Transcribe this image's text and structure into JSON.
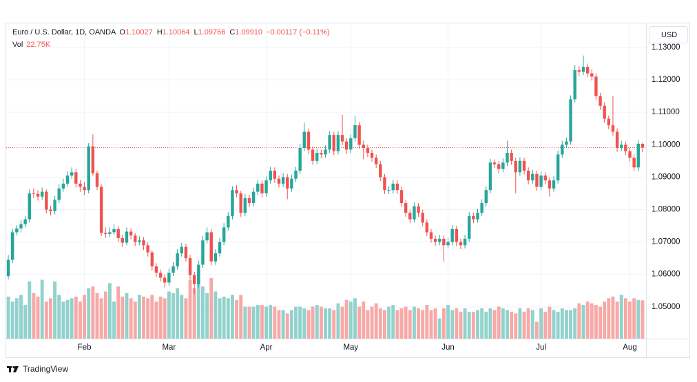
{
  "chart_data": {
    "type": "candlestick",
    "legend": {
      "symbol": "Euro / U.S. Dollar, 1D, OANDA",
      "ohlc": [
        {
          "key": "O",
          "value": "1.10027"
        },
        {
          "key": "H",
          "value": "1.10064"
        },
        {
          "key": "L",
          "value": "1.09766"
        },
        {
          "key": "C",
          "value": "1.09910"
        }
      ],
      "change": "−0.00117 (−0.11%)",
      "volume_key": "Vol",
      "volume_value": "22.75K"
    },
    "currency": "USD",
    "brand": "TradingView",
    "up_color": "#26a69a",
    "down_color": "#ef5350",
    "volume_up_color": "#92d2cc",
    "volume_down_color": "#f7a9a7",
    "grid": true,
    "ylim": [
      1.0402,
      1.1372
    ],
    "yticks": [
      {
        "value": 1.05,
        "label": "1.05000"
      },
      {
        "value": 1.06,
        "label": "1.06000"
      },
      {
        "value": 1.07,
        "label": "1.07000"
      },
      {
        "value": 1.08,
        "label": "1.08000"
      },
      {
        "value": 1.09,
        "label": "1.09000"
      },
      {
        "value": 1.1,
        "label": "1.10000"
      },
      {
        "value": 1.11,
        "label": "1.11000"
      },
      {
        "value": 1.12,
        "label": "1.12000"
      },
      {
        "value": 1.13,
        "label": "1.13000"
      }
    ],
    "categories": [
      null,
      null,
      null,
      null,
      null,
      null,
      null,
      null,
      null,
      null,
      null,
      null,
      null,
      null,
      null,
      null,
      null,
      null,
      "Feb",
      null,
      null,
      null,
      null,
      null,
      null,
      null,
      null,
      null,
      null,
      null,
      null,
      null,
      null,
      null,
      null,
      null,
      null,
      null,
      "Mar",
      null,
      null,
      null,
      null,
      null,
      null,
      null,
      null,
      null,
      null,
      null,
      null,
      null,
      null,
      null,
      null,
      null,
      null,
      null,
      null,
      null,
      null,
      "Apr",
      null,
      null,
      null,
      null,
      null,
      null,
      null,
      null,
      null,
      null,
      null,
      null,
      null,
      null,
      null,
      null,
      null,
      null,
      null,
      "May",
      null,
      null,
      null,
      null,
      null,
      null,
      null,
      null,
      null,
      null,
      null,
      null,
      null,
      null,
      null,
      null,
      null,
      null,
      null,
      null,
      null,
      null,
      "Jun",
      null,
      null,
      null,
      null,
      null,
      null,
      null,
      null,
      null,
      null,
      null,
      null,
      null,
      null,
      null,
      null,
      null,
      null,
      null,
      null,
      null,
      "Jul",
      null,
      null,
      null,
      null,
      null,
      null,
      null,
      null,
      null,
      null,
      null,
      null,
      null,
      null,
      null,
      null,
      null,
      null,
      null,
      null,
      "Aug",
      null,
      null,
      null
    ],
    "open": [
      1.0595,
      1.0645,
      1.073,
      1.0742,
      1.0755,
      1.077,
      1.085,
      1.0848,
      1.084,
      1.0855,
      1.08,
      1.0795,
      1.083,
      1.0865,
      1.088,
      1.0905,
      1.0915,
      1.088,
      1.087,
      1.086,
      1.0995,
      1.0912,
      1.087,
      1.0728,
      1.0725,
      1.073,
      1.074,
      1.0712,
      1.0698,
      1.0732,
      1.072,
      1.07,
      1.0705,
      1.069,
      1.0668,
      1.0625,
      1.0605,
      1.059,
      1.0575,
      1.0605,
      1.0625,
      1.0665,
      1.0685,
      1.065,
      1.0598,
      1.057,
      1.063,
      1.0705,
      1.073,
      1.064,
      1.0665,
      1.07,
      1.0745,
      1.078,
      1.086,
      1.085,
      1.079,
      1.0835,
      1.082,
      1.0855,
      1.088,
      1.085,
      1.089,
      1.092,
      1.0895,
      1.088,
      1.09,
      1.0865,
      1.0895,
      1.092,
      1.099,
      1.104,
      1.0985,
      1.095,
      1.0975,
      1.097,
      1.0985,
      1.103,
      1.098,
      1.103,
      1.101,
      1.0985,
      1.102,
      1.106,
      1.1,
      1.099,
      1.0975,
      1.096,
      1.094,
      1.09,
      1.086,
      1.086,
      1.088,
      1.086,
      1.082,
      1.079,
      1.077,
      1.081,
      1.079,
      1.076,
      1.073,
      1.071,
      1.07,
      1.071,
      1.069,
      1.07,
      1.074,
      1.07,
      1.069,
      1.071,
      1.078,
      1.077,
      1.079,
      1.082,
      1.086,
      1.0945,
      1.094,
      1.0925,
      1.0945,
      1.0975,
      1.095,
      1.0915,
      1.095,
      1.092,
      1.089,
      1.091,
      1.087,
      1.0905,
      1.089,
      1.0865,
      1.089,
      1.097,
      1.1,
      1.101,
      1.114,
      1.123,
      1.1225,
      1.124,
      1.122,
      1.121,
      1.115,
      1.112,
      1.108,
      1.106,
      1.104,
      1.099,
      1.1,
      1.098,
      1.096,
      1.093,
      1.10027
    ],
    "high": [
      1.066,
      1.074,
      1.0752,
      1.0768,
      1.078,
      1.0862,
      1.0865,
      1.086,
      1.0868,
      1.0862,
      1.0812,
      1.0842,
      1.0878,
      1.0895,
      1.0918,
      1.093,
      1.0925,
      1.0892,
      1.0885,
      1.1005,
      1.1032,
      1.092,
      1.0878,
      1.0745,
      1.0745,
      1.0755,
      1.075,
      1.0722,
      1.0745,
      1.0742,
      1.0728,
      1.0718,
      1.0715,
      1.07,
      1.0675,
      1.0635,
      1.0615,
      1.06,
      1.0618,
      1.0638,
      1.0678,
      1.0698,
      1.0695,
      1.066,
      1.0608,
      1.0642,
      1.0718,
      1.0745,
      1.074,
      1.0678,
      1.0712,
      1.0758,
      1.0792,
      1.0872,
      1.0875,
      1.0858,
      1.0848,
      1.0845,
      1.0868,
      1.0892,
      1.089,
      1.0902,
      1.0932,
      1.093,
      1.0905,
      1.0912,
      1.091,
      1.0908,
      1.0932,
      1.1002,
      1.1068,
      1.105,
      1.0995,
      1.0988,
      1.0985,
      1.0998,
      1.1042,
      1.104,
      1.1042,
      1.1092,
      1.102,
      1.1032,
      1.109,
      1.107,
      1.1012,
      1.1,
      1.0985,
      1.097,
      1.095,
      1.091,
      1.0872,
      1.0892,
      1.089,
      1.087,
      1.083,
      1.08,
      1.0822,
      1.082,
      1.08,
      1.077,
      1.074,
      1.072,
      1.0722,
      1.072,
      1.0712,
      1.0752,
      1.075,
      1.071,
      1.0722,
      1.0792,
      1.079,
      1.0802,
      1.0832,
      1.0872,
      1.0957,
      1.0955,
      1.095,
      1.0958,
      1.1012,
      1.0985,
      1.096,
      1.0962,
      1.096,
      1.093,
      1.0922,
      1.092,
      1.0918,
      1.0915,
      1.09,
      1.0902,
      1.0982,
      1.1012,
      1.1022,
      1.1152,
      1.1245,
      1.1242,
      1.1275,
      1.125,
      1.1232,
      1.122,
      1.116,
      1.113,
      1.109,
      1.115,
      1.105,
      1.1012,
      1.101,
      1.099,
      1.097,
      1.1015,
      1.10064
    ],
    "low": [
      1.0585,
      1.0635,
      1.072,
      1.073,
      1.0745,
      1.076,
      1.0835,
      1.0828,
      1.083,
      1.0788,
      1.0782,
      1.0785,
      1.082,
      1.0855,
      1.087,
      1.0895,
      1.0868,
      1.0855,
      1.0845,
      1.085,
      1.0905,
      1.086,
      1.0718,
      1.0712,
      1.0715,
      1.0722,
      1.07,
      1.0685,
      1.069,
      1.0708,
      1.0688,
      1.069,
      1.0675,
      1.0655,
      1.0612,
      1.0592,
      1.0578,
      1.056,
      1.0565,
      1.0595,
      1.0615,
      1.0655,
      1.064,
      1.0585,
      1.054,
      1.056,
      1.062,
      1.0695,
      1.0628,
      1.063,
      1.0655,
      1.069,
      1.0735,
      1.077,
      1.0838,
      1.0778,
      1.078,
      1.0808,
      1.081,
      1.0845,
      1.0838,
      1.084,
      1.088,
      1.0882,
      1.0868,
      1.087,
      1.0832,
      1.0855,
      1.0885,
      1.091,
      1.098,
      1.0972,
      1.0938,
      1.094,
      1.0958,
      1.096,
      1.0975,
      1.0968,
      1.097,
      1.0998,
      1.0972,
      1.0975,
      1.101,
      1.0988,
      1.0955,
      1.0962,
      1.0948,
      1.0928,
      1.0888,
      1.0848,
      1.0848,
      1.085,
      1.0848,
      1.0808,
      1.0778,
      1.0758,
      1.076,
      1.0778,
      1.0748,
      1.0718,
      1.0698,
      1.0688,
      1.069,
      1.064,
      1.068,
      1.069,
      1.0688,
      1.0678,
      1.068,
      1.07,
      1.0758,
      1.076,
      1.078,
      1.081,
      1.085,
      1.0928,
      1.0912,
      1.0915,
      1.0935,
      1.0938,
      1.085,
      1.0905,
      1.0908,
      1.0878,
      1.088,
      1.0858,
      1.086,
      1.0878,
      1.084,
      1.0855,
      1.088,
      1.096,
      1.099,
      1.1,
      1.113,
      1.1212,
      1.1215,
      1.1208,
      1.1198,
      1.1138,
      1.1108,
      1.1068,
      1.1048,
      1.1028,
      1.0978,
      1.098,
      1.0968,
      1.0948,
      1.0918,
      1.092,
      1.09766
    ],
    "close": [
      1.0645,
      1.073,
      1.0742,
      1.0755,
      1.077,
      1.085,
      1.0848,
      1.084,
      1.0855,
      1.08,
      1.0795,
      1.083,
      1.0865,
      1.088,
      1.0905,
      1.0915,
      1.088,
      1.087,
      1.086,
      1.0995,
      1.0912,
      1.087,
      1.0728,
      1.0725,
      1.073,
      1.074,
      1.0712,
      1.0698,
      1.0732,
      1.072,
      1.07,
      1.0705,
      1.069,
      1.0668,
      1.0625,
      1.0605,
      1.059,
      1.0575,
      1.0605,
      1.0625,
      1.0665,
      1.0685,
      1.065,
      1.0598,
      1.057,
      1.063,
      1.0705,
      1.073,
      1.064,
      1.0665,
      1.07,
      1.0745,
      1.078,
      1.086,
      1.085,
      1.079,
      1.0835,
      1.082,
      1.0855,
      1.088,
      1.085,
      1.089,
      1.092,
      1.0895,
      1.088,
      1.09,
      1.0865,
      1.0895,
      1.092,
      1.099,
      1.104,
      1.0985,
      1.095,
      1.0975,
      1.097,
      1.0985,
      1.103,
      1.098,
      1.103,
      1.101,
      1.0985,
      1.102,
      1.106,
      1.1,
      1.099,
      1.0975,
      1.096,
      1.094,
      1.09,
      1.086,
      1.086,
      1.088,
      1.086,
      1.082,
      1.079,
      1.077,
      1.081,
      1.079,
      1.076,
      1.073,
      1.071,
      1.07,
      1.071,
      1.069,
      1.07,
      1.074,
      1.07,
      1.069,
      1.071,
      1.078,
      1.077,
      1.079,
      1.082,
      1.086,
      1.0945,
      1.094,
      1.0925,
      1.0945,
      1.0975,
      1.095,
      1.0915,
      1.095,
      1.092,
      1.089,
      1.091,
      1.087,
      1.0905,
      1.089,
      1.0865,
      1.089,
      1.097,
      1.1,
      1.101,
      1.114,
      1.123,
      1.1225,
      1.124,
      1.122,
      1.121,
      1.115,
      1.112,
      1.108,
      1.106,
      1.104,
      1.099,
      1.1,
      1.098,
      1.096,
      1.093,
      1.1003,
      1.0991
    ],
    "volume": [
      25,
      22,
      24,
      26,
      20,
      34,
      27,
      25,
      35,
      22,
      24,
      34,
      26,
      22,
      23,
      24,
      25,
      22,
      26,
      30,
      31,
      27,
      24,
      28,
      33,
      22,
      31,
      25,
      27,
      24,
      22,
      26,
      25,
      24,
      26,
      22,
      25,
      24,
      28,
      27,
      30,
      26,
      24,
      35,
      30,
      36,
      31,
      27,
      36,
      28,
      24,
      25,
      24,
      26,
      23,
      26,
      19,
      19,
      19,
      20,
      20,
      19,
      20,
      19,
      17,
      17,
      15,
      17,
      19,
      19,
      18,
      17,
      19,
      20,
      19,
      18,
      18,
      17,
      21,
      19,
      23,
      22,
      24,
      19,
      22,
      17,
      19,
      21,
      18,
      17,
      19,
      20,
      17,
      18,
      19,
      17,
      19,
      18,
      17,
      20,
      17,
      18,
      12,
      18,
      20,
      17,
      18,
      16,
      18,
      16,
      16,
      17,
      18,
      16,
      18,
      17,
      19,
      18,
      17,
      16,
      15,
      18,
      16,
      18,
      17,
      10,
      18,
      16,
      19,
      17,
      16,
      18,
      17,
      17,
      18,
      21,
      20,
      22,
      21,
      20,
      19,
      22,
      24,
      25,
      22,
      26,
      24,
      22,
      24,
      23,
      22.75
    ]
  }
}
